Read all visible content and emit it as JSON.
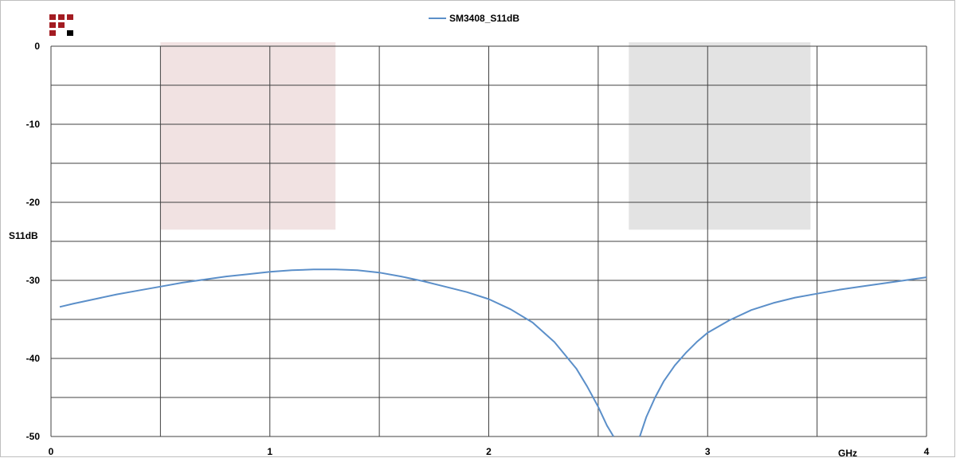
{
  "chart_data": {
    "type": "line",
    "title": "",
    "xlabel": "GHz",
    "ylabel": "S11dB",
    "xlim": [
      0,
      4
    ],
    "ylim": [
      -50,
      0
    ],
    "x_ticks": [
      "0",
      "1",
      "2",
      "3",
      "4"
    ],
    "y_ticks": [
      "0",
      "-10",
      "-20",
      "-30",
      "-40",
      "-50"
    ],
    "grid": true,
    "legend_position": "top-center",
    "series": [
      {
        "name": "SM3408_S11dB",
        "color": "#5b8fc9",
        "x": [
          0.04,
          0.1,
          0.2,
          0.3,
          0.4,
          0.5,
          0.6,
          0.7,
          0.8,
          0.9,
          1.0,
          1.1,
          1.2,
          1.3,
          1.4,
          1.5,
          1.6,
          1.7,
          1.8,
          1.9,
          2.0,
          2.1,
          2.2,
          2.3,
          2.4,
          2.45,
          2.5,
          2.54,
          2.57
        ],
        "y": [
          -33.4,
          -33.0,
          -32.4,
          -31.8,
          -31.3,
          -30.8,
          -30.3,
          -29.9,
          -29.5,
          -29.2,
          -28.9,
          -28.7,
          -28.6,
          -28.6,
          -28.7,
          -29.0,
          -29.5,
          -30.1,
          -30.8,
          -31.5,
          -32.4,
          -33.7,
          -35.4,
          -37.9,
          -41.3,
          -43.6,
          -46.2,
          -48.6,
          -50.0
        ]
      },
      {
        "name": "SM3408_S11dB",
        "color": "#5b8fc9",
        "x": [
          2.69,
          2.72,
          2.76,
          2.8,
          2.85,
          2.9,
          2.95,
          3.0,
          3.1,
          3.2,
          3.3,
          3.4,
          3.5,
          3.6,
          3.7,
          3.8,
          3.9,
          4.0
        ],
        "y": [
          -50.0,
          -47.5,
          -45.0,
          -42.9,
          -40.9,
          -39.3,
          -37.9,
          -36.7,
          -35.1,
          -33.8,
          -32.9,
          -32.2,
          -31.7,
          -31.2,
          -30.8,
          -30.4,
          -30.0,
          -29.6
        ]
      }
    ],
    "bands": [
      {
        "x_start": 0.5,
        "x_end": 1.3,
        "y_start": -23.5,
        "y_end": 0.5,
        "color": "#f1e2e2"
      },
      {
        "x_start": 2.64,
        "x_end": 3.47,
        "y_start": -23.5,
        "y_end": 0.5,
        "color": "#e3e3e3"
      }
    ]
  },
  "logo": {
    "colors": [
      "#a31c22",
      "#000000"
    ],
    "grid": [
      [
        1,
        1,
        1
      ],
      [
        1,
        1,
        0
      ],
      [
        1,
        0,
        2
      ]
    ]
  }
}
